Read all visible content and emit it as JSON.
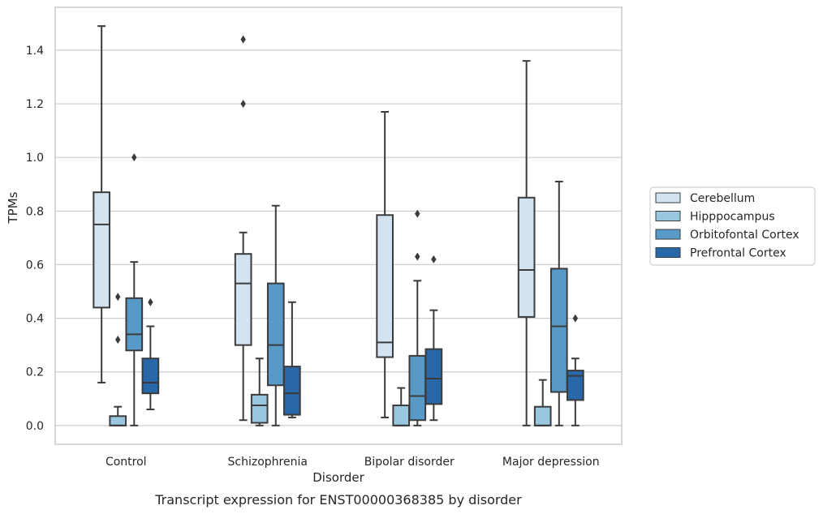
{
  "chart_data": {
    "type": "box",
    "caption": "Transcript expression for ENST00000368385 by disorder",
    "xlabel": "Disorder",
    "ylabel": "TPMs",
    "ylim": [
      -0.07,
      1.56
    ],
    "yticks": [
      0.0,
      0.2,
      0.4,
      0.6,
      0.8,
      1.0,
      1.2,
      1.4
    ],
    "ytick_labels": [
      "0.0",
      "0.2",
      "0.4",
      "0.6",
      "0.8",
      "1.0",
      "1.2",
      "1.4"
    ],
    "grid": "horizontal",
    "legend_position": "right",
    "categories": [
      "Control",
      "Schizophrenia",
      "Bipolar disorder",
      "Major depression"
    ],
    "series": [
      {
        "name": "Cerebellum",
        "color": "#d3e3f2",
        "boxes": [
          {
            "whislo": 0.16,
            "q1": 0.44,
            "med": 0.75,
            "q3": 0.87,
            "whishi": 1.49,
            "fliers": []
          },
          {
            "whislo": 0.02,
            "q1": 0.3,
            "med": 0.53,
            "q3": 0.64,
            "whishi": 0.72,
            "fliers": [
              1.2,
              1.44
            ]
          },
          {
            "whislo": 0.03,
            "q1": 0.255,
            "med": 0.31,
            "q3": 0.785,
            "whishi": 1.17,
            "fliers": []
          },
          {
            "whislo": 0.0,
            "q1": 0.405,
            "med": 0.58,
            "q3": 0.85,
            "whishi": 1.36,
            "fliers": []
          }
        ]
      },
      {
        "name": "Hipppocampus",
        "color": "#9ac7e0",
        "boxes": [
          {
            "whislo": 0.0,
            "q1": 0.0,
            "med": 0.0,
            "q3": 0.035,
            "whishi": 0.07,
            "fliers": [
              0.32,
              0.48
            ]
          },
          {
            "whislo": 0.0,
            "q1": 0.01,
            "med": 0.075,
            "q3": 0.115,
            "whishi": 0.25,
            "fliers": []
          },
          {
            "whislo": 0.0,
            "q1": 0.0,
            "med": 0.0,
            "q3": 0.075,
            "whishi": 0.14,
            "fliers": []
          },
          {
            "whislo": 0.0,
            "q1": 0.0,
            "med": 0.0,
            "q3": 0.07,
            "whishi": 0.17,
            "fliers": []
          }
        ]
      },
      {
        "name": "Orbitofontal Cortex",
        "color": "#5799c7",
        "boxes": [
          {
            "whislo": 0.0,
            "q1": 0.28,
            "med": 0.34,
            "q3": 0.475,
            "whishi": 0.61,
            "fliers": [
              1.0
            ]
          },
          {
            "whislo": 0.0,
            "q1": 0.15,
            "med": 0.3,
            "q3": 0.53,
            "whishi": 0.82,
            "fliers": []
          },
          {
            "whislo": 0.0,
            "q1": 0.02,
            "med": 0.11,
            "q3": 0.26,
            "whishi": 0.54,
            "fliers": [
              0.63,
              0.79
            ]
          },
          {
            "whislo": 0.0,
            "q1": 0.125,
            "med": 0.37,
            "q3": 0.585,
            "whishi": 0.91,
            "fliers": []
          }
        ]
      },
      {
        "name": "Prefrontal Cortex",
        "color": "#2867a8",
        "boxes": [
          {
            "whislo": 0.06,
            "q1": 0.12,
            "med": 0.16,
            "q3": 0.25,
            "whishi": 0.37,
            "fliers": [
              0.46
            ]
          },
          {
            "whislo": 0.03,
            "q1": 0.04,
            "med": 0.12,
            "q3": 0.22,
            "whishi": 0.46,
            "fliers": []
          },
          {
            "whislo": 0.02,
            "q1": 0.08,
            "med": 0.175,
            "q3": 0.285,
            "whishi": 0.43,
            "fliers": [
              0.62
            ]
          },
          {
            "whislo": 0.0,
            "q1": 0.095,
            "med": 0.185,
            "q3": 0.205,
            "whishi": 0.25,
            "fliers": [
              0.4
            ]
          }
        ]
      }
    ]
  }
}
